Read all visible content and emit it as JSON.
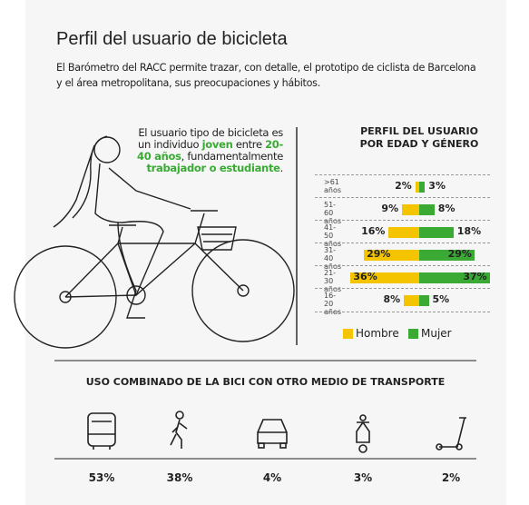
{
  "title": "Perfil del usuario de bicicleta",
  "subtitle": "El Barómetro del RACC permite trazar, con detalle, el prototipo de ciclista de Barcelona y el área metropolitana, sus preocupaciones y hábitos.",
  "intro": [
    "El usuario tipo de bicicleta es un individuo ",
    "joven",
    " entre ",
    "20-40 años",
    ", fundamentalmente ",
    "trabajador o estudiante",
    "."
  ],
  "chart_data": {
    "type": "pyramid",
    "title": "PERFIL DEL USUARIO POR EDAD Y GÉNERO",
    "categories": [
      ">61 años",
      "51-60 años",
      "41-50 años",
      "31-40 años",
      "21-30 años",
      "16-20 años"
    ],
    "series": [
      {
        "name": "Hombre",
        "color": "#f5c400",
        "values": [
          2,
          9,
          16,
          29,
          36,
          8
        ],
        "value_labels": [
          "2%",
          "9%",
          "16%",
          "29%",
          "36%",
          "8%"
        ]
      },
      {
        "name": "Mujer",
        "color": "#3aaa35",
        "values": [
          3,
          8,
          18,
          29,
          37,
          5
        ],
        "value_labels": [
          "3%",
          "8%",
          "18%",
          "29%",
          "37%",
          "5%"
        ]
      }
    ]
  },
  "transport": {
    "title": "USO COMBINADO DE LA BICI CON OTRO MEDIO DE TRANSPORTE",
    "labels": [
      "53%",
      "38%",
      "4%",
      "3%",
      "2%"
    ]
  }
}
